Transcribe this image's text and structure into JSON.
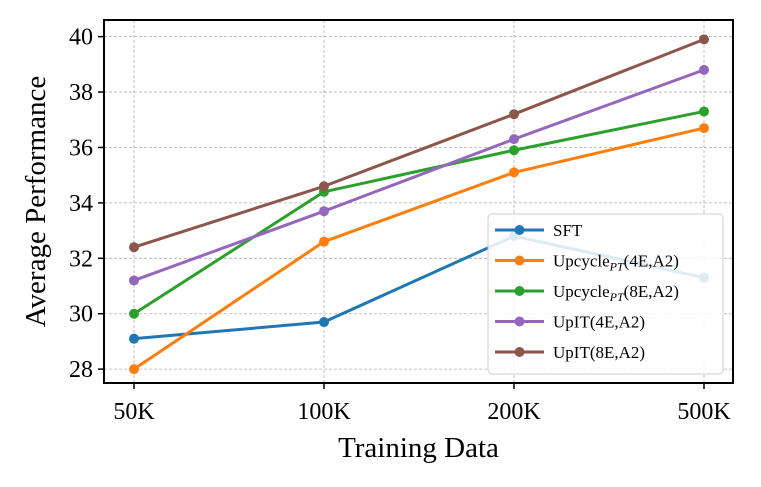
{
  "chart_data": {
    "type": "line",
    "title": "",
    "xlabel": "Training Data",
    "ylabel": "Average Performance",
    "categories": [
      "50K",
      "100K",
      "200K",
      "500K"
    ],
    "ylim": [
      27.5,
      40.6
    ],
    "yticks": [
      28,
      30,
      32,
      34,
      36,
      38,
      40
    ],
    "grid": true,
    "legend_position": "lower-right",
    "series": [
      {
        "name": "SFT",
        "color": "#1f77b4",
        "values": [
          29.1,
          29.7,
          32.8,
          31.3
        ]
      },
      {
        "name": "Upcycle",
        "name_sub": "PT",
        "name_suffix": "(4E,A2)",
        "color": "#ff7f0e",
        "values": [
          28.0,
          32.6,
          35.1,
          36.7
        ]
      },
      {
        "name": "Upcycle",
        "name_sub": "PT",
        "name_suffix": "(8E,A2)",
        "color": "#2ca02c",
        "values": [
          30.0,
          34.4,
          35.9,
          37.3
        ]
      },
      {
        "name": "UpIT(4E,A2)",
        "color": "#9467bd",
        "values": [
          31.2,
          33.7,
          36.3,
          38.8
        ]
      },
      {
        "name": "UpIT(8E,A2)",
        "color": "#8c564b",
        "values": [
          32.4,
          34.6,
          37.2,
          39.9
        ]
      }
    ]
  }
}
